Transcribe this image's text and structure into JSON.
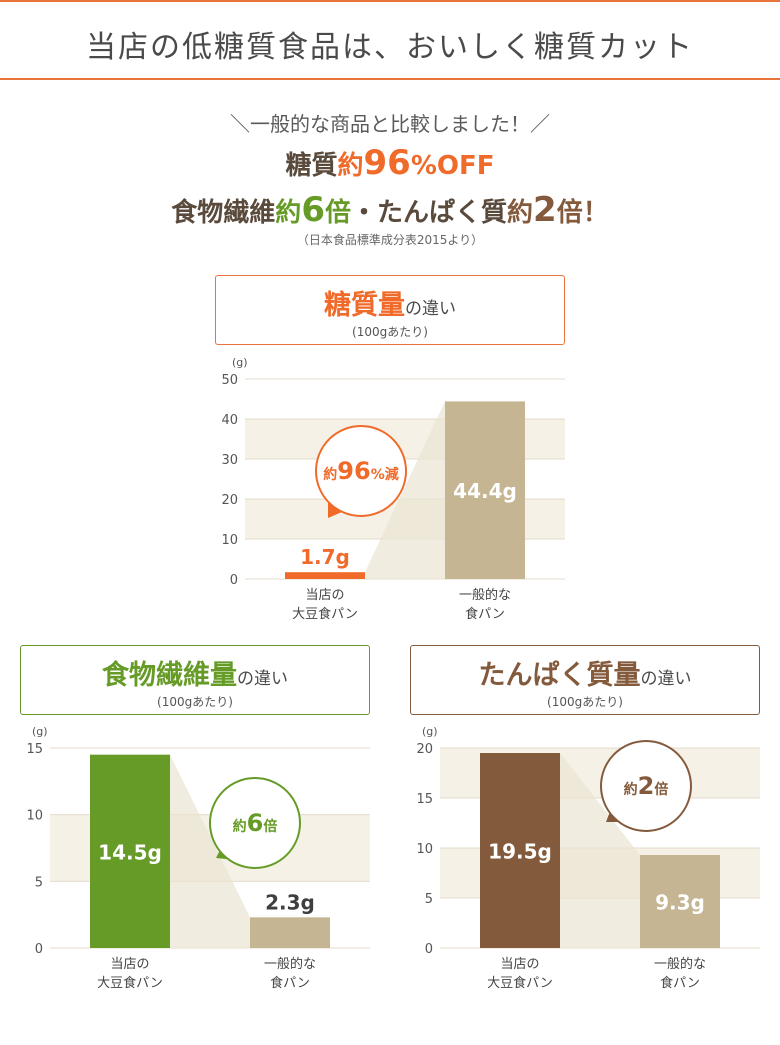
{
  "header": {
    "title": "当店の低糖質食品は、おいしく糖質カット"
  },
  "intro": {
    "line1": "＼一般的な商品と比較しました！／",
    "line2_a": "糖質",
    "line2_b": "約",
    "line2_c": "96",
    "line2_d": "%OFF",
    "line3_a": "食物繊維",
    "line3_b": "約",
    "line3_c": "6",
    "line3_d": "倍",
    "line3_e": "・たんぱく質",
    "line3_f": "約",
    "line3_g": "2",
    "line3_h": "倍！",
    "source": "（日本食品標準成分表2015より）"
  },
  "colors": {
    "accent": "#e8743b",
    "orange": "#f06a2a",
    "green": "#659b26",
    "brown": "#845a3c",
    "beige": "#c5b593",
    "band": "#f5f1e6"
  },
  "chart_data": [
    {
      "type": "bar",
      "title_main": "糖質量",
      "title_suffix": "の違い",
      "subtitle": "(100gあたり)",
      "unit": "(g)",
      "ylim": [
        0,
        50
      ],
      "yticks": [
        0,
        10,
        20,
        30,
        40,
        50
      ],
      "categories": [
        [
          "当店の",
          "大豆食パン"
        ],
        [
          "一般的な",
          "食パン"
        ]
      ],
      "values": [
        1.7,
        44.4
      ],
      "value_labels": [
        "1.7g",
        "44.4g"
      ],
      "bar_colors": [
        "#f06a2a",
        "#c5b593"
      ],
      "callout": {
        "prefix": "約",
        "number": "96",
        "suffix": "%減",
        "color": "#f06a2a"
      }
    },
    {
      "type": "bar",
      "title_main": "食物繊維量",
      "title_suffix": "の違い",
      "subtitle": "(100gあたり)",
      "unit": "(g)",
      "ylim": [
        0,
        15
      ],
      "yticks": [
        0,
        5,
        10,
        15
      ],
      "categories": [
        [
          "当店の",
          "大豆食パン"
        ],
        [
          "一般的な",
          "食パン"
        ]
      ],
      "values": [
        14.5,
        2.3
      ],
      "value_labels": [
        "14.5g",
        "2.3g"
      ],
      "bar_colors": [
        "#659b26",
        "#c5b593"
      ],
      "callout": {
        "prefix": "約",
        "number": "6",
        "suffix": "倍",
        "color": "#659b26"
      }
    },
    {
      "type": "bar",
      "title_main": "たんぱく質量",
      "title_suffix": "の違い",
      "subtitle": "(100gあたり)",
      "unit": "(g)",
      "ylim": [
        0,
        20
      ],
      "yticks": [
        0,
        5,
        10,
        15,
        20
      ],
      "categories": [
        [
          "当店の",
          "大豆食パン"
        ],
        [
          "一般的な",
          "食パン"
        ]
      ],
      "values": [
        19.5,
        9.3
      ],
      "value_labels": [
        "19.5g",
        "9.3g"
      ],
      "bar_colors": [
        "#845a3c",
        "#c5b593"
      ],
      "callout": {
        "prefix": "約",
        "number": "2",
        "suffix": "倍",
        "color": "#845a3c"
      }
    }
  ]
}
